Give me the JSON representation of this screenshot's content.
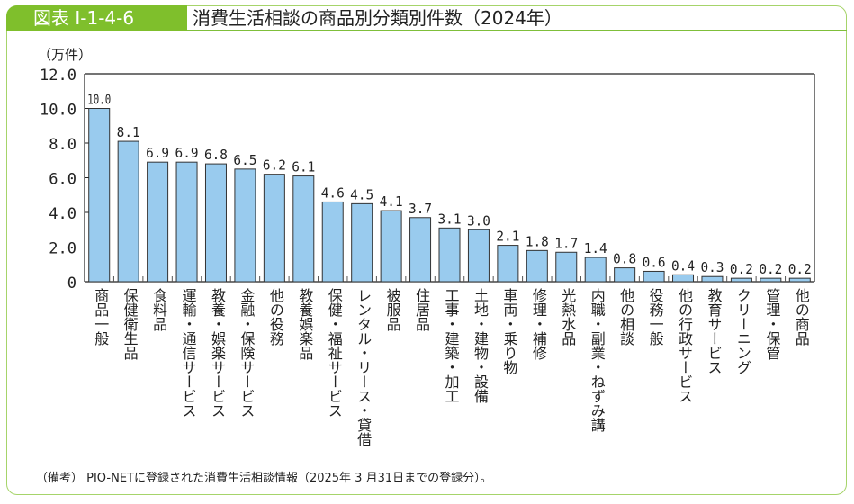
{
  "header": {
    "figure_label": "図表 I-1-4-6",
    "title": "消費生活相談の商品別分類別件数（2024年）"
  },
  "unit_label": "（万件）",
  "note": "（備考） PIO-NETに登録された消費生活相談情報（2025年 3 月31日までの登録分）。",
  "colors": {
    "accent": "#7fbf2c",
    "frame": "#a6d46a",
    "bar_fill": "#99cbee",
    "bar_stroke": "#333333"
  },
  "chart_data": {
    "type": "bar",
    "title": "消費生活相談の商品別分類別件数（2024年）",
    "xlabel": "",
    "ylabel": "（万件）",
    "ylim": [
      0,
      12
    ],
    "yticks": [
      "0",
      "2.0",
      "4.0",
      "6.0",
      "8.0",
      "10.0",
      "12.0"
    ],
    "ytick_values": [
      0,
      2,
      4,
      6,
      8,
      10,
      12
    ],
    "grid": false,
    "categories": [
      "商品一般",
      "保健衛生品",
      "食料品",
      "運輸・通信サービス",
      "教養・娯楽サービス",
      "金融・保険サービス",
      "他の役務",
      "教養娯楽品",
      "保健・福祉サービス",
      "レンタル・リース・貸借",
      "被服品",
      "住居品",
      "工事・建築・加工",
      "土地・建物・設備",
      "車両・乗り物",
      "修理・補修",
      "光熱水品",
      "内職・副業・ねずみ講",
      "他の相談",
      "役務一般",
      "他の行政サービス",
      "教育サービス",
      "クリーニング",
      "管理・保管",
      "他の商品"
    ],
    "values": [
      10.0,
      8.1,
      6.9,
      6.9,
      6.8,
      6.5,
      6.2,
      6.1,
      4.6,
      4.5,
      4.1,
      3.7,
      3.1,
      3.0,
      2.1,
      1.8,
      1.7,
      1.4,
      0.8,
      0.6,
      0.4,
      0.3,
      0.2,
      0.2,
      0.2
    ],
    "value_labels": [
      "10.0",
      "8.1",
      "6.9",
      "6.9",
      "6.8",
      "6.5",
      "6.2",
      "6.1",
      "4.6",
      "4.5",
      "4.1",
      "3.7",
      "3.1",
      "3.0",
      "2.1",
      "1.8",
      "1.7",
      "1.4",
      "0.8",
      "0.6",
      "0.4",
      "0.3",
      "0.2",
      "0.2",
      "0.2"
    ]
  }
}
